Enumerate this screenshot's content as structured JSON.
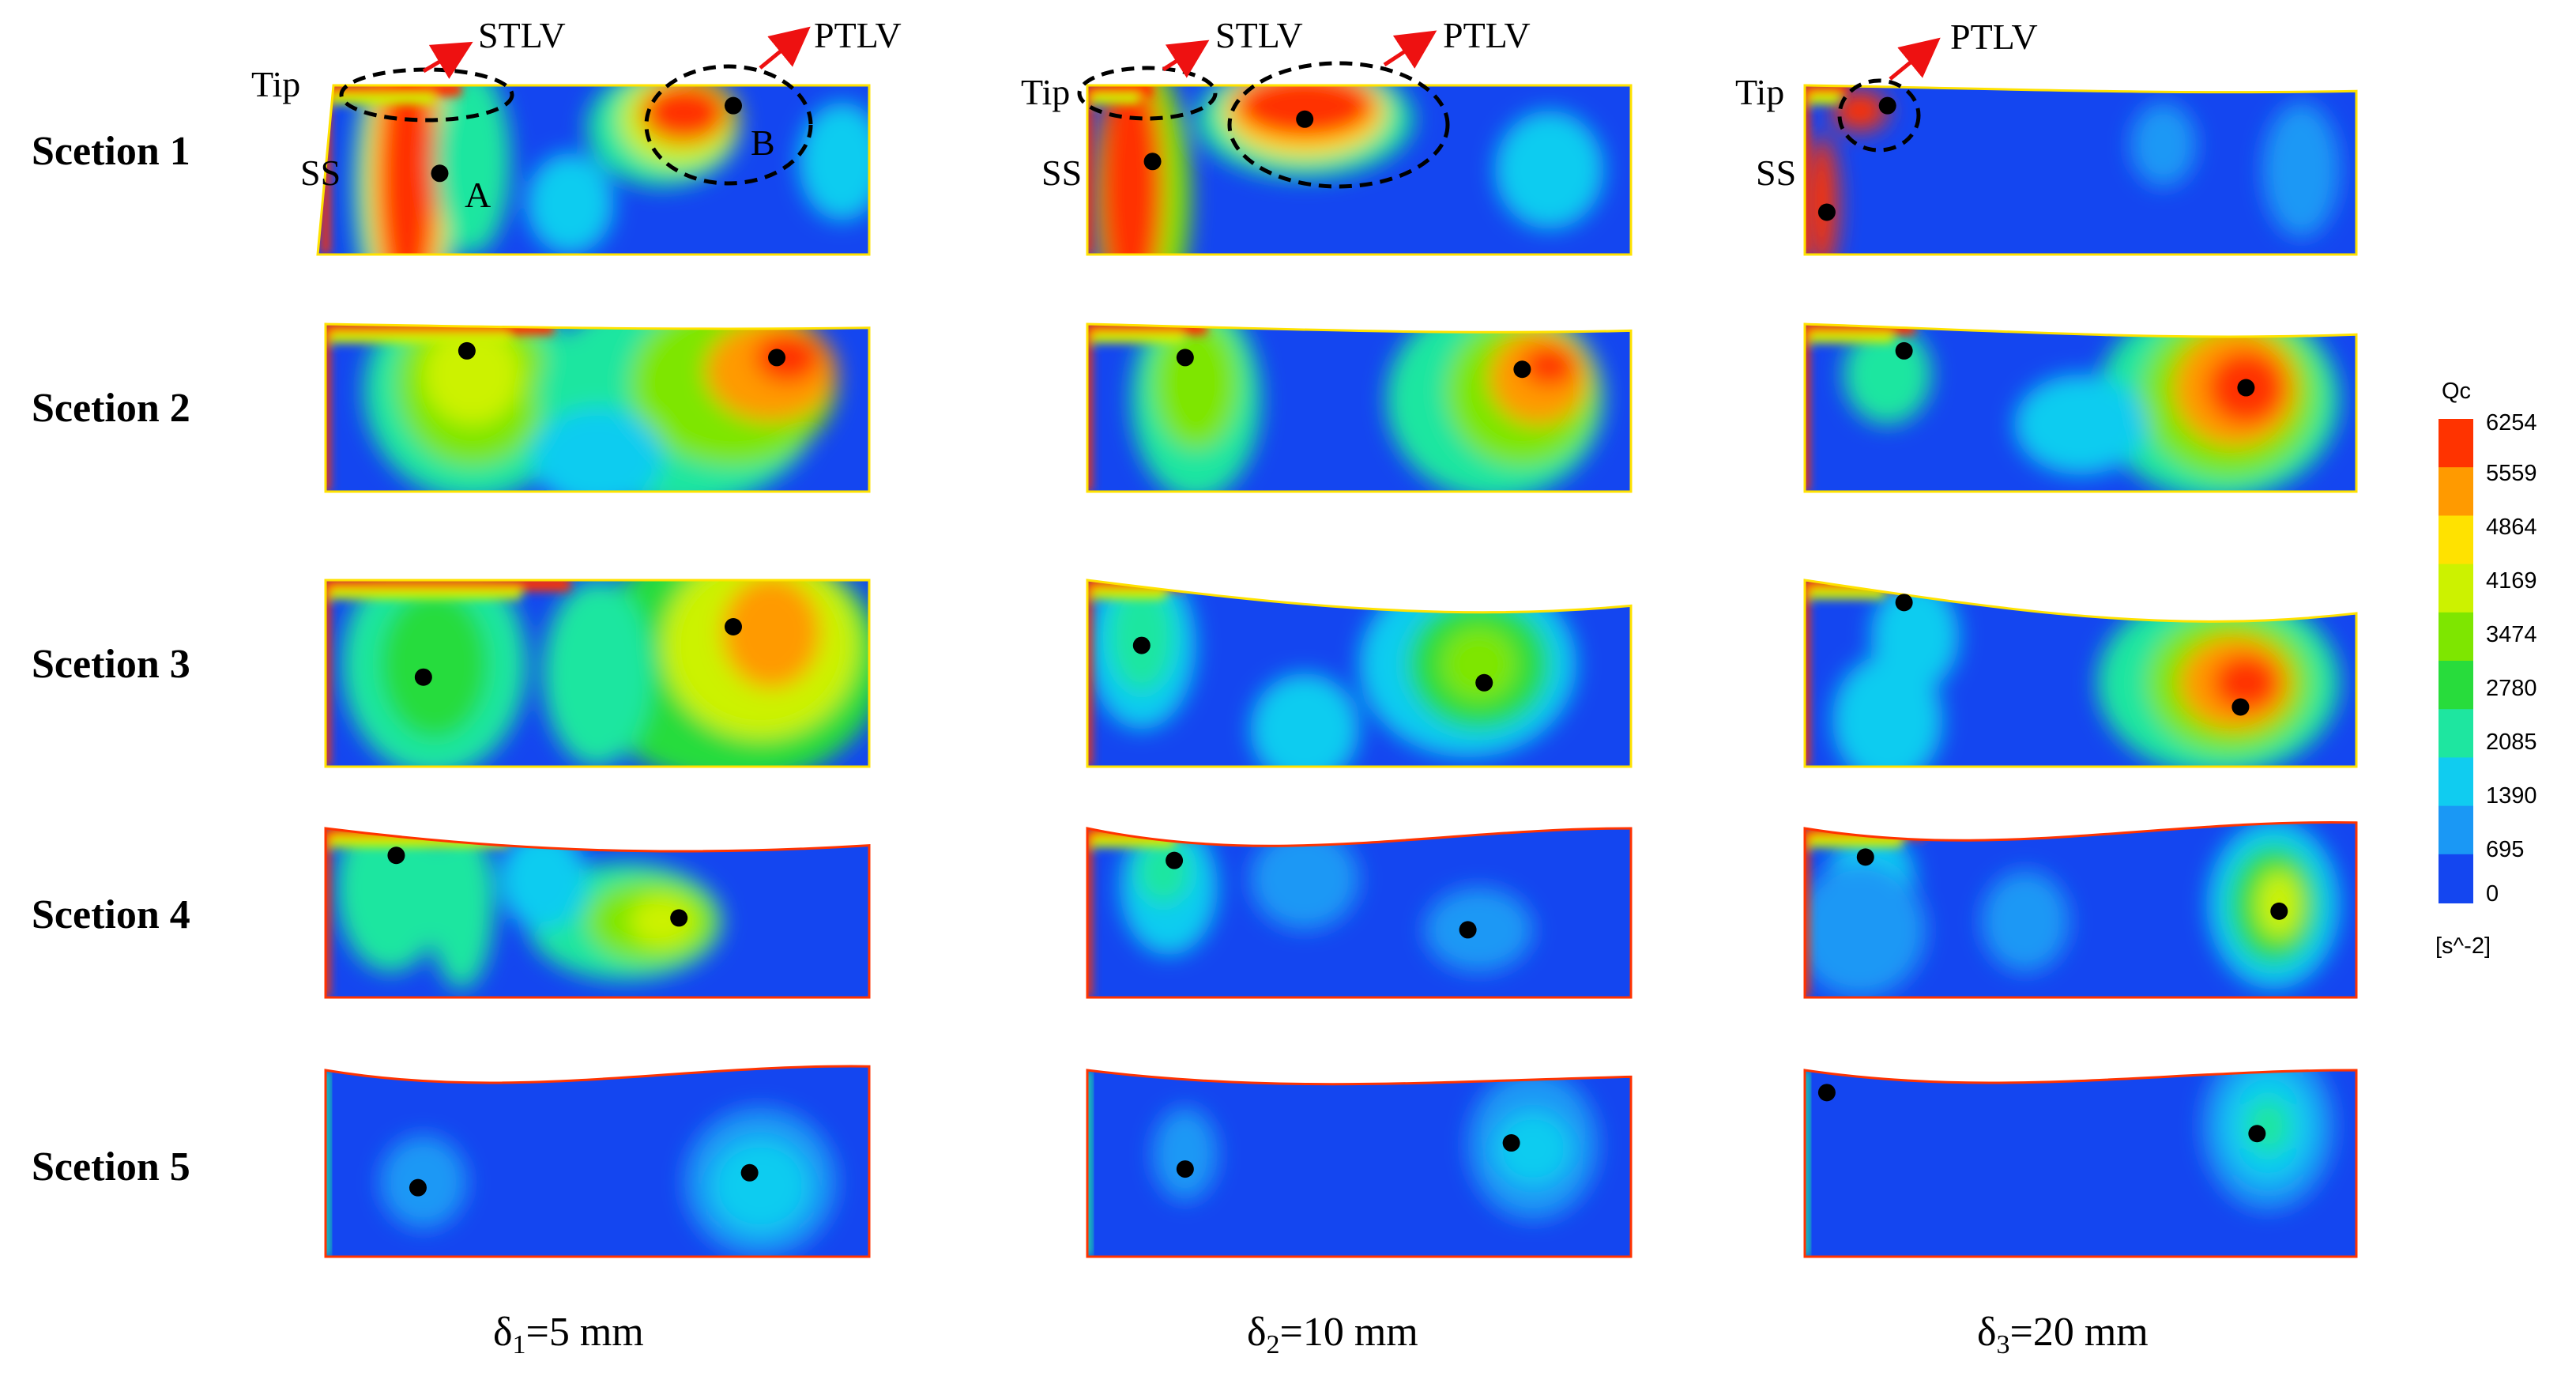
{
  "row_labels": [
    "Scetion 1",
    "Scetion 2",
    "Scetion 3",
    "Scetion 4",
    "Scetion 5"
  ],
  "columns": [
    {
      "prefix": "δ",
      "sub": "1",
      "suffix": "=5 mm"
    },
    {
      "prefix": "δ",
      "sub": "2",
      "suffix": "=10 mm"
    },
    {
      "prefix": "δ",
      "sub": "3",
      "suffix": "=20 mm"
    }
  ],
  "annotations": {
    "tip": "Tip",
    "ss": "SS",
    "stlv": "STLV",
    "ptlv": "PTLV",
    "point_a": "A",
    "point_b": "B"
  },
  "colorbar": {
    "title": "Qc",
    "unit": "[s^-2]",
    "ticks": [
      "6254",
      "5559",
      "4864",
      "4169",
      "3474",
      "2780",
      "2085",
      "1390",
      "695",
      "0"
    ],
    "colors": [
      "#ff3300",
      "#ff9a00",
      "#ffe200",
      "#ccf200",
      "#7ee600",
      "#28dc3c",
      "#1ee6a0",
      "#10ccf0",
      "#1a98f5",
      "#1446f0"
    ]
  },
  "colors": {
    "field_background": "#1446f0",
    "core_marker": "#000000",
    "annotation_arrow": "#ee1111",
    "annotation_ellipse": "#000000"
  }
}
